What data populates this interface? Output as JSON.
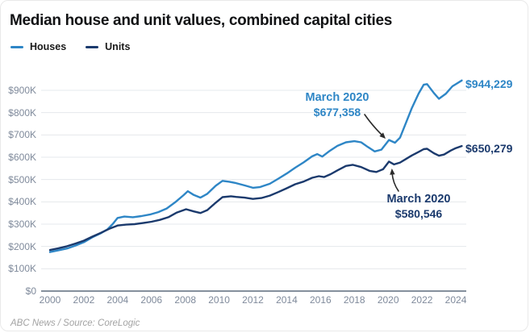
{
  "title": "Median house and unit values, combined capital cities",
  "legend": [
    {
      "label": "Houses",
      "color": "#2e86c6"
    },
    {
      "label": "Units",
      "color": "#1b3a6d"
    }
  ],
  "annotations": {
    "houses": {
      "line1": "March 2020",
      "line2": "$677,358"
    },
    "units": {
      "line1": "March 2020",
      "line2": "$580,546"
    }
  },
  "end_labels": {
    "houses": "$944,229",
    "units": "$650,279"
  },
  "footer": "ABC News / Source: CoreLogic",
  "chart_data": {
    "type": "line",
    "title": "Median house and unit values, combined capital cities",
    "xlabel": "",
    "ylabel": "",
    "x_unit": "year",
    "y_unit": "AUD thousands",
    "xlim": [
      2000,
      2024.6
    ],
    "ylim": [
      0,
      950
    ],
    "grid": "horizontal",
    "legend_position": "top-left",
    "yticks": [
      0,
      100,
      200,
      300,
      400,
      500,
      600,
      700,
      800,
      900
    ],
    "ytick_labels": [
      "$0",
      "$100K",
      "$200K",
      "$300K",
      "$400K",
      "$500K",
      "$600K",
      "$700K",
      "$800K",
      "$900K"
    ],
    "xticks": [
      2000,
      2002,
      2004,
      2006,
      2008,
      2010,
      2012,
      2014,
      2016,
      2018,
      2020,
      2022,
      2024
    ],
    "series": [
      {
        "name": "Houses",
        "color": "#2e86c6",
        "points": [
          [
            2000.0,
            175
          ],
          [
            2000.5,
            183
          ],
          [
            2001.0,
            191
          ],
          [
            2001.5,
            204
          ],
          [
            2002.0,
            219
          ],
          [
            2002.5,
            241
          ],
          [
            2003.0,
            259
          ],
          [
            2003.4,
            277
          ],
          [
            2003.7,
            300
          ],
          [
            2004.0,
            328
          ],
          [
            2004.4,
            334
          ],
          [
            2004.9,
            331
          ],
          [
            2005.4,
            336
          ],
          [
            2005.9,
            343
          ],
          [
            2006.4,
            354
          ],
          [
            2006.9,
            370
          ],
          [
            2007.4,
            398
          ],
          [
            2007.9,
            430
          ],
          [
            2008.15,
            448
          ],
          [
            2008.5,
            431
          ],
          [
            2008.9,
            419
          ],
          [
            2009.3,
            436
          ],
          [
            2009.8,
            472
          ],
          [
            2010.2,
            494
          ],
          [
            2010.6,
            490
          ],
          [
            2011.0,
            484
          ],
          [
            2011.5,
            474
          ],
          [
            2012.0,
            463
          ],
          [
            2012.4,
            466
          ],
          [
            2013.0,
            481
          ],
          [
            2013.5,
            504
          ],
          [
            2014.0,
            527
          ],
          [
            2014.5,
            553
          ],
          [
            2015.0,
            577
          ],
          [
            2015.5,
            604
          ],
          [
            2015.8,
            614
          ],
          [
            2016.1,
            603
          ],
          [
            2016.5,
            626
          ],
          [
            2017.0,
            651
          ],
          [
            2017.5,
            667
          ],
          [
            2018.0,
            672
          ],
          [
            2018.4,
            667
          ],
          [
            2018.8,
            646
          ],
          [
            2019.2,
            626
          ],
          [
            2019.6,
            634
          ],
          [
            2020.05,
            677.358
          ],
          [
            2020.4,
            665
          ],
          [
            2020.7,
            688
          ],
          [
            2021.0,
            745
          ],
          [
            2021.4,
            820
          ],
          [
            2021.8,
            885
          ],
          [
            2022.1,
            925
          ],
          [
            2022.3,
            928
          ],
          [
            2022.7,
            888
          ],
          [
            2023.0,
            862
          ],
          [
            2023.4,
            884
          ],
          [
            2023.8,
            918
          ],
          [
            2024.1,
            932
          ],
          [
            2024.35,
            944.229
          ]
        ]
      },
      {
        "name": "Units",
        "color": "#1b3a6d",
        "points": [
          [
            2000.0,
            184
          ],
          [
            2000.5,
            192
          ],
          [
            2001.0,
            201
          ],
          [
            2001.5,
            213
          ],
          [
            2002.0,
            226
          ],
          [
            2002.5,
            244
          ],
          [
            2003.0,
            261
          ],
          [
            2003.5,
            279
          ],
          [
            2004.0,
            294
          ],
          [
            2004.5,
            298
          ],
          [
            2005.0,
            300
          ],
          [
            2005.5,
            305
          ],
          [
            2006.0,
            311
          ],
          [
            2006.5,
            319
          ],
          [
            2007.0,
            331
          ],
          [
            2007.5,
            352
          ],
          [
            2008.05,
            367
          ],
          [
            2008.5,
            357
          ],
          [
            2008.9,
            350
          ],
          [
            2009.3,
            363
          ],
          [
            2009.8,
            396
          ],
          [
            2010.2,
            421
          ],
          [
            2010.7,
            425
          ],
          [
            2011.0,
            422
          ],
          [
            2011.5,
            419
          ],
          [
            2012.0,
            413
          ],
          [
            2012.5,
            417
          ],
          [
            2013.0,
            428
          ],
          [
            2013.5,
            444
          ],
          [
            2014.0,
            461
          ],
          [
            2014.5,
            479
          ],
          [
            2015.0,
            491
          ],
          [
            2015.5,
            508
          ],
          [
            2015.9,
            515
          ],
          [
            2016.2,
            511
          ],
          [
            2016.6,
            524
          ],
          [
            2017.0,
            541
          ],
          [
            2017.5,
            561
          ],
          [
            2017.9,
            566
          ],
          [
            2018.4,
            556
          ],
          [
            2018.9,
            539
          ],
          [
            2019.3,
            534
          ],
          [
            2019.7,
            546
          ],
          [
            2020.05,
            580.546
          ],
          [
            2020.35,
            568
          ],
          [
            2020.7,
            576
          ],
          [
            2021.0,
            590
          ],
          [
            2021.4,
            608
          ],
          [
            2021.8,
            624
          ],
          [
            2022.1,
            636
          ],
          [
            2022.3,
            638
          ],
          [
            2022.7,
            618
          ],
          [
            2023.0,
            607
          ],
          [
            2023.3,
            612
          ],
          [
            2023.7,
            630
          ],
          [
            2024.0,
            641
          ],
          [
            2024.35,
            650.279
          ]
        ]
      }
    ]
  }
}
